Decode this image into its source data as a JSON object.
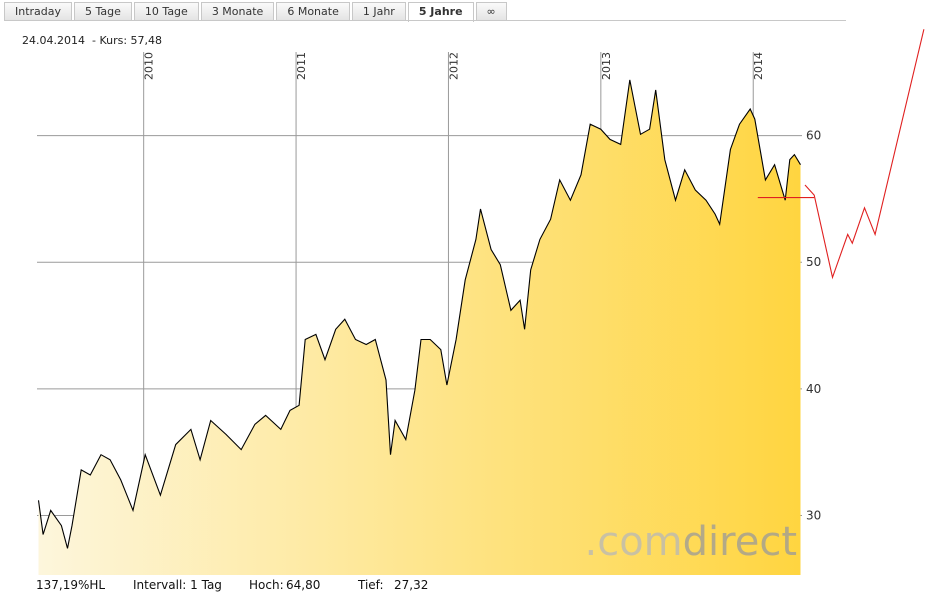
{
  "tabs": [
    "Intraday",
    "5 Tage",
    "10 Tage",
    "3 Monate",
    "6 Monate",
    "1 Jahr",
    "5 Jahre",
    "∞"
  ],
  "active_tab": 6,
  "header": {
    "date": "24.04.2014",
    "price_label": "- Kurs: 57,48"
  },
  "footer": {
    "change": "137,19%HL",
    "interval": "Intervall: 1 Tag",
    "high_label": "Hoch:",
    "high": "64,80",
    "low_label": "Tief:",
    "low": "27,32"
  },
  "watermark": {
    "prefix": ".com",
    "brand": "direct"
  },
  "chart_data": {
    "type": "area",
    "xlim": [
      2009.3,
      2014.32
    ],
    "xticks": [
      2010,
      2011,
      2012,
      2013,
      2014
    ],
    "ylim": [
      25.3,
      66.6
    ],
    "yticks": [
      30,
      40,
      50,
      60
    ],
    "grid": true,
    "area_colors": [
      "#fdf6dc",
      "#ffd540"
    ],
    "series": [
      {
        "color": "#000000",
        "fill": true,
        "x": [
          2009.31,
          2009.34,
          2009.39,
          2009.46,
          2009.5,
          2009.53,
          2009.59,
          2009.65,
          2009.72,
          2009.78,
          2009.85,
          2009.93,
          2010.01,
          2010.11,
          2010.21,
          2010.31,
          2010.37,
          2010.44,
          2010.54,
          2010.64,
          2010.73,
          2010.8,
          2010.9,
          2010.96,
          2011.02,
          2011.06,
          2011.13,
          2011.19,
          2011.26,
          2011.32,
          2011.39,
          2011.46,
          2011.52,
          2011.59,
          2011.62,
          2011.65,
          2011.72,
          2011.78,
          2011.82,
          2011.88,
          2011.95,
          2011.99,
          2012.05,
          2012.11,
          2012.18,
          2012.21,
          2012.28,
          2012.34,
          2012.41,
          2012.47,
          2012.5,
          2012.54,
          2012.6,
          2012.67,
          2012.73,
          2012.8,
          2012.87,
          2012.93,
          2013.0,
          2013.06,
          2013.13,
          2013.19,
          2013.26,
          2013.32,
          2013.36,
          2013.42,
          2013.49,
          2013.55,
          2013.62,
          2013.69,
          2013.75,
          2013.78,
          2013.85,
          2013.91,
          2013.98,
          2014.01,
          2014.08,
          2014.14,
          2014.21,
          2014.24,
          2014.27,
          2014.31
        ],
        "values": [
          31.2,
          28.5,
          30.4,
          29.2,
          27.4,
          29.2,
          33.6,
          33.2,
          34.8,
          34.4,
          32.8,
          30.4,
          34.8,
          31.6,
          35.6,
          36.8,
          34.4,
          37.5,
          36.4,
          35.2,
          37.2,
          37.9,
          36.8,
          38.3,
          38.7,
          43.9,
          44.3,
          42.3,
          44.7,
          45.5,
          43.9,
          43.5,
          43.9,
          40.7,
          34.8,
          37.5,
          36.0,
          39.9,
          43.9,
          43.9,
          43.1,
          40.3,
          43.9,
          48.6,
          51.8,
          54.2,
          51.0,
          49.8,
          46.2,
          47.0,
          44.7,
          49.4,
          51.8,
          53.4,
          56.5,
          54.9,
          56.9,
          60.9,
          60.5,
          59.7,
          59.3,
          64.4,
          60.1,
          60.5,
          63.6,
          58.1,
          54.9,
          57.3,
          55.7,
          54.9,
          53.8,
          53.0,
          58.9,
          60.9,
          62.1,
          61.3,
          56.5,
          57.7,
          54.9,
          58.1,
          58.5,
          57.7
        ]
      },
      {
        "color": "#e02020",
        "fill": false,
        "x": [
          2014.03,
          2014.4
        ],
        "values": [
          55.1,
          55.1
        ]
      },
      {
        "color": "#e02020",
        "fill": false,
        "x": [
          2014.34,
          2014.4,
          2014.52,
          2014.62,
          2014.65,
          2014.73,
          2014.8,
          2015.12
        ],
        "values": [
          56.1,
          55.3,
          48.8,
          52.2,
          51.5,
          54.3,
          52.2,
          68.4
        ]
      }
    ]
  }
}
